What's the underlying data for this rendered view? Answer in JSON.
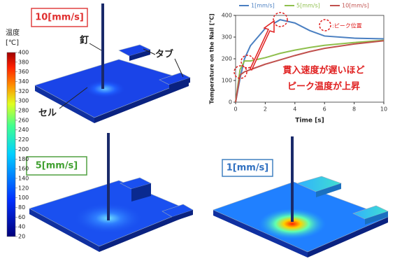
{
  "chart_data": {
    "type": "line",
    "xlabel": "Time [s]",
    "ylabel": "Temperature on the Nail [℃]",
    "x": [
      0,
      0.3,
      0.6,
      1,
      2,
      3,
      4,
      5,
      6,
      8,
      10
    ],
    "series": [
      {
        "name": "1[mm/s]",
        "color": "#4a7fc1",
        "values": [
          0,
          110,
          200,
          260,
          340,
          380,
          365,
          330,
          305,
          295,
          292
        ]
      },
      {
        "name": "5[mm/s]",
        "color": "#8fbf4d",
        "values": [
          0,
          150,
          190,
          190,
          205,
          225,
          240,
          252,
          262,
          275,
          285
        ]
      },
      {
        "name": "10[mm/s]",
        "color": "#c0504d",
        "values": [
          0,
          125,
          140,
          150,
          175,
          195,
          215,
          233,
          248,
          268,
          283
        ]
      }
    ],
    "xlim": [
      0,
      10
    ],
    "xticks": [
      0,
      2,
      4,
      6,
      8,
      10
    ],
    "ylim": [
      0,
      400
    ],
    "yticks": [
      0,
      100,
      200,
      300,
      400
    ],
    "annotations": [
      ":ピーク位置",
      "貫入速度が遅いほど",
      "ピーク温度が上昇"
    ]
  },
  "colorbar": {
    "title": "温度",
    "unit": "[℃]",
    "lim": [
      20,
      400
    ],
    "ticks": [
      20,
      40,
      60,
      80,
      100,
      120,
      140,
      160,
      180,
      200,
      220,
      240,
      260,
      280,
      300,
      320,
      340,
      360,
      380,
      400
    ]
  },
  "panels": [
    {
      "label": "10[mm/s]"
    },
    {
      "label": "5[mm/s]"
    },
    {
      "label": "1[mm/s]"
    }
  ],
  "callouts": {
    "nail": "釘",
    "tab": "タブ",
    "cell": "セル"
  }
}
